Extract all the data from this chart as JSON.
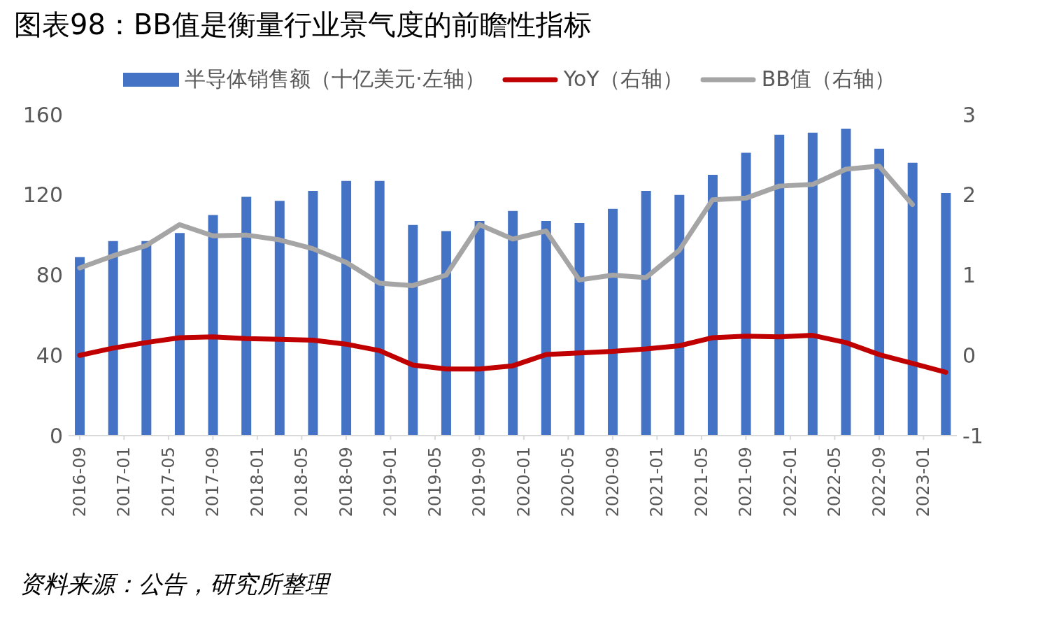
{
  "chart_data": {
    "type": "bar",
    "title": "图表98：BB值是衡量行业景气度的前瞻性指标",
    "x": [
      "2016-09",
      "2016-12",
      "2017-03",
      "2017-06",
      "2017-09",
      "2017-12",
      "2018-03",
      "2018-06",
      "2018-09",
      "2018-12",
      "2019-03",
      "2019-06",
      "2019-09",
      "2019-12",
      "2020-03",
      "2020-06",
      "2020-09",
      "2020-12",
      "2021-03",
      "2021-06",
      "2021-09",
      "2021-12",
      "2022-03",
      "2022-06",
      "2022-09",
      "2022-12",
      "2023-03"
    ],
    "series": [
      {
        "name": "半导体销售额（十亿美元·左轴）",
        "color": "#4472c4",
        "values": [
          89,
          97,
          97,
          101,
          110,
          119,
          117,
          122,
          127,
          127,
          105,
          102,
          107,
          112,
          107,
          106,
          113,
          122,
          120,
          130,
          141,
          150,
          151,
          153,
          143,
          136,
          121
        ]
      },
      {
        "name": "YoY（右轴）",
        "type": "line",
        "axis": "y2",
        "color": "#c00000",
        "values": [
          0,
          0.09,
          0.16,
          0.22,
          0.23,
          0.21,
          0.2,
          0.19,
          0.14,
          0.06,
          -0.12,
          -0.17,
          -0.17,
          -0.13,
          0.01,
          0.03,
          0.05,
          0.08,
          0.12,
          0.22,
          0.24,
          0.23,
          0.25,
          0.16,
          0.01,
          -0.1,
          -0.21
        ]
      },
      {
        "name": "BB值（右轴）",
        "type": "line",
        "axis": "y2",
        "color": "#a5a5a5",
        "values": [
          1.09,
          1.24,
          1.37,
          1.63,
          1.49,
          1.5,
          1.44,
          1.33,
          1.16,
          0.9,
          0.87,
          1,
          1.63,
          1.45,
          1.55,
          0.94,
          1,
          0.97,
          1.31,
          1.94,
          1.96,
          2.11,
          2.13,
          2.32,
          2.36,
          1.88,
          null
        ]
      }
    ],
    "xlim": [
      "2016-08",
      "2023-04"
    ],
    "xticks": [
      "2016-09",
      "2017-01",
      "2017-05",
      "2017-09",
      "2018-01",
      "2018-05",
      "2018-09",
      "2019-01",
      "2019-05",
      "2019-09",
      "2020-01",
      "2020-05",
      "2020-09",
      "2021-01",
      "2021-05",
      "2021-09",
      "2022-01",
      "2022-05",
      "2022-09",
      "2023-01"
    ],
    "ylim": [
      0,
      160
    ],
    "yticks": [
      0,
      40,
      80,
      120,
      160
    ],
    "y2lim": [
      -1,
      3
    ],
    "y2ticks": [
      -1,
      0,
      1,
      2,
      3
    ],
    "grid": false,
    "legend": "top",
    "marker": "none",
    "line_style": "solid",
    "annotations": [
      "资料来源：公告，研究所整理"
    ]
  }
}
